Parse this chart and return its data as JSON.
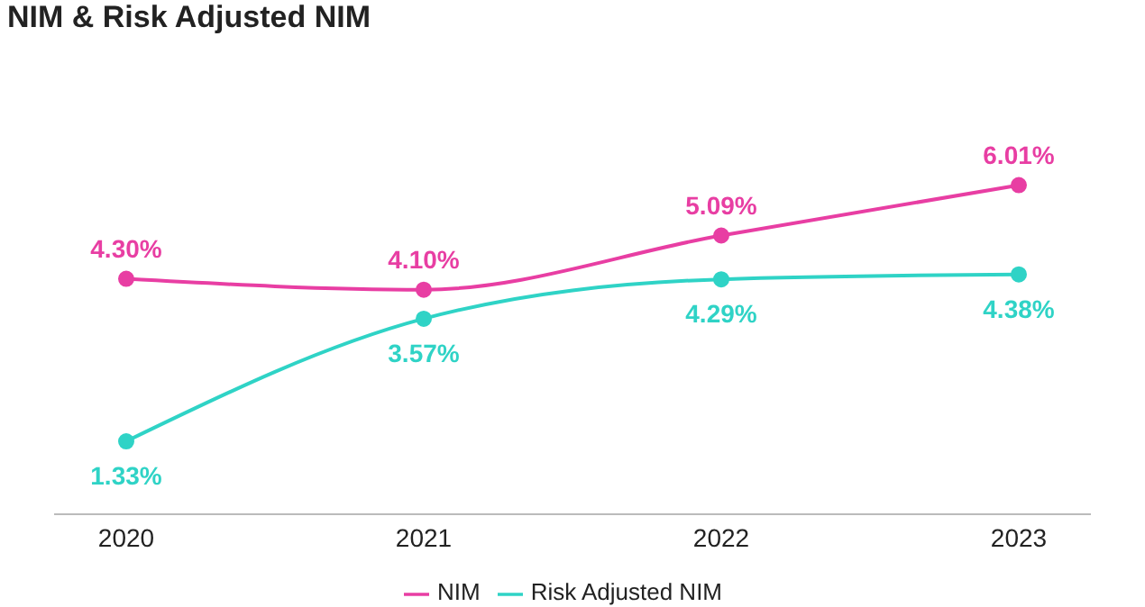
{
  "chart_data": {
    "type": "line",
    "title": "NIM & Risk Adjusted NIM",
    "categories": [
      "2020",
      "2021",
      "2022",
      "2023"
    ],
    "series": [
      {
        "name": "NIM",
        "color": "#e83ea3",
        "values": [
          4.3,
          4.1,
          5.09,
          6.01
        ],
        "value_labels": [
          "4.30%",
          "4.10%",
          "5.09%",
          "6.01%"
        ]
      },
      {
        "name": "Risk Adjusted NIM",
        "color": "#2fd3c6",
        "values": [
          1.33,
          3.57,
          4.29,
          4.38
        ],
        "value_labels": [
          "1.33%",
          "3.57%",
          "4.29%",
          "4.38%"
        ]
      }
    ],
    "legend": "bottom",
    "marker": "circle",
    "tick_labels": "x"
  }
}
